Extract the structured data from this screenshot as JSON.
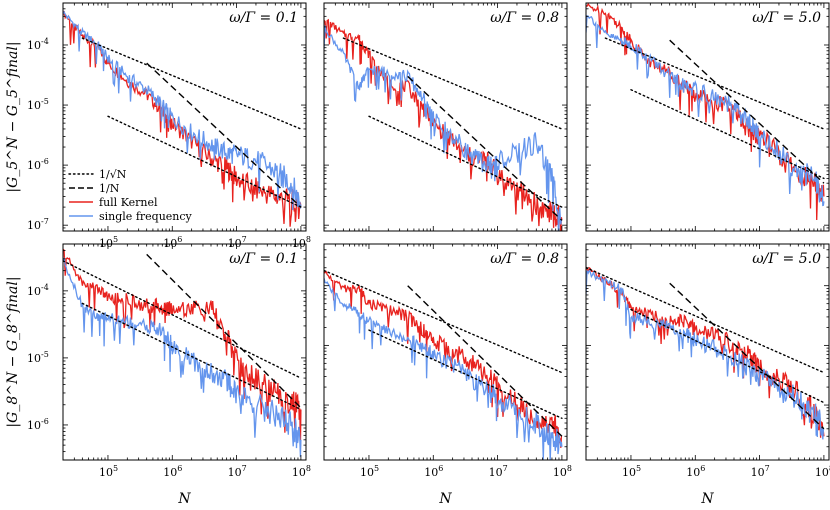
{
  "chart_data": [
    {
      "type": "line",
      "panel_label": "ω/Γ = 0.1",
      "ylabel": "|G_5^N − G_5^final|",
      "xlabel": "",
      "x_scale": "log",
      "y_scale": "log",
      "xlim": [
        20000,
        120000000
      ],
      "ylim": [
        8e-08,
        0.0005
      ],
      "x_ticks": [
        "10^5",
        "10^6",
        "10^7",
        "10^8"
      ],
      "y_ticks": [
        "10^-4",
        "10^-5",
        "10^-6",
        "10^-7"
      ],
      "legend": {
        "position": "bottom-left",
        "entries": [
          {
            "label": "1/√N",
            "style": "dotted",
            "color": "#000000"
          },
          {
            "label": "1/N",
            "style": "dashed",
            "color": "#000000"
          },
          {
            "label": "full Kernel",
            "style": "solid",
            "color": "#e8231f"
          },
          {
            "label": "single frequency",
            "style": "solid",
            "color": "#6495ed"
          }
        ]
      },
      "series": [
        {
          "name": "full Kernel",
          "color": "#e8231f",
          "x": [
            20000,
            40000,
            70000,
            100000,
            200000,
            400000,
            700000,
            1000000,
            2000000,
            4000000,
            7000000,
            10000000,
            20000000,
            40000000,
            70000000,
            100000000
          ],
          "y": [
            0.00035,
            0.00014,
            9e-05,
            5e-05,
            2.5e-05,
            1.5e-05,
            8e-06,
            5e-06,
            2.5e-06,
            1.3e-06,
            9e-07,
            6e-07,
            4e-07,
            3e-07,
            2.5e-07,
            2e-07
          ]
        },
        {
          "name": "single frequency",
          "color": "#6495ed",
          "x": [
            20000,
            40000,
            70000,
            100000,
            200000,
            400000,
            700000,
            1000000,
            2000000,
            4000000,
            7000000,
            10000000,
            20000000,
            40000000,
            70000000,
            100000000
          ],
          "y": [
            0.00035,
            0.00016,
            0.0001,
            6e-05,
            3e-05,
            1.8e-05,
            1e-05,
            6e-06,
            3.5e-06,
            2.2e-06,
            1.6e-06,
            1.5e-06,
            1.2e-06,
            8e-07,
            5e-07,
            2.2e-07
          ]
        },
        {
          "name": "1/√N",
          "color": "#000000",
          "style": "dotted",
          "x": [
            40000,
            100000000
          ],
          "y": [
            0.00013,
            4e-06
          ]
        },
        {
          "name": "1/√N",
          "color": "#000000",
          "style": "dotted",
          "x": [
            100000,
            100000000
          ],
          "y": [
            6.5e-06,
            2e-07
          ]
        },
        {
          "name": "1/N",
          "color": "#000000",
          "style": "dashed",
          "x": [
            400000,
            100000000
          ],
          "y": [
            5e-05,
            2e-07
          ]
        }
      ]
    },
    {
      "type": "line",
      "panel_label": "ω/Γ = 0.8",
      "x_scale": "log",
      "y_scale": "log",
      "xlim": [
        20000,
        120000000
      ],
      "ylim": [
        8e-08,
        0.0005
      ],
      "x_ticks": [],
      "y_ticks": [],
      "series": [
        {
          "name": "full Kernel",
          "color": "#e8231f",
          "x": [
            20000,
            40000,
            70000,
            100000,
            200000,
            400000,
            700000,
            1000000,
            2000000,
            4000000,
            7000000,
            10000000,
            20000000,
            40000000,
            70000000,
            100000000
          ],
          "y": [
            0.00028,
            0.00015,
            0.00013,
            7e-05,
            2.3e-05,
            2e-05,
            9e-06,
            5e-06,
            2.5e-06,
            1.3e-06,
            1.2e-06,
            7e-07,
            4e-07,
            2.2e-07,
            1.5e-07,
            1.2e-07
          ]
        },
        {
          "name": "single frequency",
          "color": "#6495ed",
          "x": [
            20000,
            40000,
            70000,
            100000,
            200000,
            400000,
            700000,
            1000000,
            2000000,
            4000000,
            7000000,
            10000000,
            20000000,
            40000000,
            70000000,
            100000000
          ],
          "y": [
            0.0002,
            7e-05,
            2e-05,
            4e-05,
            3.5e-05,
            3e-05,
            1.3e-05,
            6e-06,
            3e-06,
            1.4e-06,
            1e-06,
            1.2e-06,
            1.5e-06,
            2.5e-06,
            6e-07,
            1.2e-07
          ]
        },
        {
          "name": "1/√N",
          "color": "#000000",
          "style": "dotted",
          "x": [
            40000,
            100000000
          ],
          "y": [
            0.00013,
            4e-06
          ]
        },
        {
          "name": "1/√N",
          "color": "#000000",
          "style": "dotted",
          "x": [
            100000,
            100000000
          ],
          "y": [
            6.5e-06,
            2e-07
          ]
        },
        {
          "name": "1/N",
          "color": "#000000",
          "style": "dashed",
          "x": [
            400000,
            100000000
          ],
          "y": [
            3e-05,
            1.2e-07
          ]
        }
      ]
    },
    {
      "type": "line",
      "panel_label": "ω/Γ = 5.0",
      "x_scale": "log",
      "y_scale": "log",
      "xlim": [
        20000,
        120000000
      ],
      "ylim": [
        8e-08,
        0.0005
      ],
      "x_ticks": [],
      "y_ticks": [],
      "series": [
        {
          "name": "full Kernel",
          "color": "#e8231f",
          "x": [
            20000,
            40000,
            70000,
            100000,
            200000,
            400000,
            700000,
            1000000,
            2000000,
            4000000,
            7000000,
            10000000,
            20000000,
            40000000,
            70000000,
            100000000
          ],
          "y": [
            0.00045,
            0.00035,
            0.0002,
            0.00012,
            5e-05,
            3.5e-05,
            2e-05,
            1.5e-05,
            1.2e-05,
            8e-06,
            4e-06,
            3e-06,
            1.5e-06,
            7e-07,
            5e-07,
            3e-07
          ]
        },
        {
          "name": "single frequency",
          "color": "#6495ed",
          "x": [
            20000,
            40000,
            70000,
            100000,
            200000,
            400000,
            700000,
            1000000,
            2000000,
            4000000,
            7000000,
            10000000,
            20000000,
            40000000,
            70000000,
            100000000
          ],
          "y": [
            0.00035,
            0.00015,
            0.00012,
            0.0001,
            6e-05,
            3e-05,
            2e-05,
            1.8e-05,
            1.3e-05,
            9e-06,
            5e-06,
            3e-06,
            1.7e-06,
            8e-07,
            6e-07,
            2.5e-07
          ]
        },
        {
          "name": "1/√N",
          "color": "#000000",
          "style": "dotted",
          "x": [
            40000,
            100000000
          ],
          "y": [
            0.00013,
            4e-06
          ]
        },
        {
          "name": "1/√N",
          "color": "#000000",
          "style": "dotted",
          "x": [
            100000,
            100000000
          ],
          "y": [
            1.8e-05,
            6e-07
          ]
        },
        {
          "name": "1/N",
          "color": "#000000",
          "style": "dashed",
          "x": [
            400000,
            100000000
          ],
          "y": [
            0.00012,
            5e-07
          ]
        }
      ]
    },
    {
      "type": "line",
      "panel_label": "ω/Γ = 0.1",
      "ylabel": "|G_8^N − G_8^final|",
      "xlabel": "N",
      "x_scale": "log",
      "y_scale": "log",
      "xlim": [
        20000,
        120000000
      ],
      "ylim": [
        3e-07,
        0.0005
      ],
      "x_ticks": [
        "10^5",
        "10^6",
        "10^7",
        "10^8"
      ],
      "y_ticks": [
        "10^-4",
        "10^-5",
        "10^-6"
      ],
      "series": [
        {
          "name": "full Kernel",
          "color": "#e8231f",
          "x": [
            20000,
            40000,
            70000,
            100000,
            200000,
            400000,
            700000,
            1000000,
            2000000,
            4000000,
            7000000,
            10000000,
            20000000,
            40000000,
            70000000,
            100000000
          ],
          "y": [
            0.0004,
            0.00013,
            0.00011,
            8e-05,
            7.5e-05,
            6e-05,
            5.8e-05,
            5.5e-05,
            5.5e-05,
            5.5e-05,
            2e-05,
            1e-05,
            5e-06,
            3e-06,
            2.2e-06,
            1.7e-06
          ]
        },
        {
          "name": "single frequency",
          "color": "#6495ed",
          "x": [
            20000,
            40000,
            70000,
            100000,
            200000,
            400000,
            700000,
            1000000,
            2000000,
            4000000,
            7000000,
            10000000,
            20000000,
            40000000,
            70000000,
            100000000
          ],
          "y": [
            0.0003,
            6e-05,
            4e-05,
            4e-05,
            3.5e-05,
            3e-05,
            2.5e-05,
            1.5e-05,
            9e-06,
            6e-06,
            4.5e-06,
            3e-06,
            2e-06,
            1.5e-06,
            1e-06,
            6e-07
          ]
        },
        {
          "name": "1/√N",
          "color": "#000000",
          "style": "dotted",
          "x": [
            20000,
            100000000
          ],
          "y": [
            0.00028,
            5e-06
          ]
        },
        {
          "name": "1/√N",
          "color": "#000000",
          "style": "dotted",
          "x": [
            40000,
            100000000
          ],
          "y": [
            6.5e-05,
            1.7e-06
          ]
        },
        {
          "name": "1/N",
          "color": "#000000",
          "style": "dashed",
          "x": [
            400000,
            100000000
          ],
          "y": [
            0.00035,
            1.8e-06
          ]
        }
      ]
    },
    {
      "type": "line",
      "panel_label": "ω/Γ = 0.8",
      "xlabel": "N",
      "x_scale": "log",
      "y_scale": "log",
      "xlim": [
        20000,
        120000000
      ],
      "ylim": [
        1.2e-07,
        0.0005
      ],
      "x_ticks": [
        "10^5",
        "10^6",
        "10^7",
        "10^8"
      ],
      "y_ticks": [],
      "series": [
        {
          "name": "full Kernel",
          "color": "#e8231f",
          "x": [
            20000,
            40000,
            70000,
            100000,
            200000,
            400000,
            700000,
            1000000,
            2000000,
            4000000,
            7000000,
            10000000,
            20000000,
            40000000,
            70000000,
            100000000
          ],
          "y": [
            0.00017,
            9e-05,
            9e-05,
            5e-05,
            4e-05,
            3e-05,
            1.8e-05,
            1.2e-05,
            8e-06,
            5e-06,
            3e-06,
            2e-06,
            1.2e-06,
            6e-07,
            5e-07,
            3e-07
          ]
        },
        {
          "name": "single frequency",
          "color": "#6495ed",
          "x": [
            20000,
            40000,
            70000,
            100000,
            200000,
            400000,
            700000,
            1000000,
            2000000,
            4000000,
            7000000,
            10000000,
            20000000,
            40000000,
            70000000,
            100000000
          ],
          "y": [
            0.00012,
            5e-05,
            3.5e-05,
            2.5e-05,
            1.7e-05,
            1.3e-05,
            9e-06,
            7e-06,
            5e-06,
            2.5e-06,
            1.8e-06,
            1.3e-06,
            8e-07,
            5e-07,
            3e-07,
            2e-07
          ]
        },
        {
          "name": "1/√N",
          "color": "#000000",
          "style": "dotted",
          "x": [
            20000,
            100000000
          ],
          "y": [
            0.00018,
            3.5e-06
          ]
        },
        {
          "name": "1/√N",
          "color": "#000000",
          "style": "dotted",
          "x": [
            100000,
            100000000
          ],
          "y": [
            1.8e-05,
            6e-07
          ]
        },
        {
          "name": "1/N",
          "color": "#000000",
          "style": "dashed",
          "x": [
            400000,
            100000000
          ],
          "y": [
            0.0001,
            3e-07
          ]
        }
      ]
    },
    {
      "type": "line",
      "panel_label": "ω/Γ = 5.0",
      "xlabel": "N",
      "x_scale": "log",
      "y_scale": "log",
      "xlim": [
        20000,
        120000000
      ],
      "ylim": [
        1.2e-07,
        0.0005
      ],
      "x_ticks": [
        "10^5",
        "10^6",
        "10^7",
        "10^8"
      ],
      "y_ticks": [],
      "series": [
        {
          "name": "full Kernel",
          "color": "#e8231f",
          "x": [
            20000,
            40000,
            70000,
            100000,
            200000,
            400000,
            700000,
            1000000,
            2000000,
            4000000,
            7000000,
            10000000,
            20000000,
            40000000,
            70000000,
            100000000
          ],
          "y": [
            0.0002,
            0.00012,
            8e-05,
            4e-05,
            3.5e-05,
            2.5e-05,
            2.5e-05,
            1.8e-05,
            1.5e-05,
            1e-05,
            7e-06,
            4e-06,
            3e-06,
            1.5e-06,
            8e-07,
            3e-07
          ]
        },
        {
          "name": "single frequency",
          "color": "#6495ed",
          "x": [
            20000,
            40000,
            70000,
            100000,
            200000,
            400000,
            700000,
            1000000,
            2000000,
            4000000,
            7000000,
            10000000,
            20000000,
            40000000,
            70000000,
            100000000
          ],
          "y": [
            0.00017,
            0.00012,
            9e-05,
            3e-05,
            2.5e-05,
            2e-05,
            1.5e-05,
            1.2e-05,
            9e-06,
            6e-06,
            4e-06,
            3e-06,
            2e-06,
            1.2e-06,
            7e-07,
            4e-07
          ]
        },
        {
          "name": "1/√N",
          "color": "#000000",
          "style": "dotted",
          "x": [
            20000,
            100000000
          ],
          "y": [
            0.0002,
            3.5e-06
          ]
        },
        {
          "name": "1/√N",
          "color": "#000000",
          "style": "dotted",
          "x": [
            100000,
            100000000
          ],
          "y": [
            4e-05,
            1.1e-06
          ]
        },
        {
          "name": "1/N",
          "color": "#000000",
          "style": "dashed",
          "x": [
            400000,
            100000000
          ],
          "y": [
            0.00011,
            4e-07
          ]
        }
      ]
    }
  ]
}
